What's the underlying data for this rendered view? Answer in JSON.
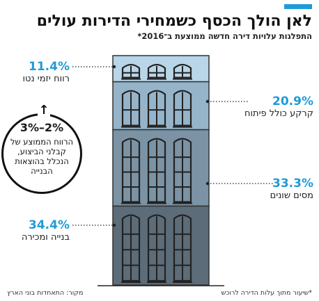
{
  "header": {
    "accent_color": "#1f9bd7",
    "title": "לאן הולך הכסף כשמחירי הדירות עולים",
    "subtitle": "התפלגות עלויות דירה חדשה ממוצעת ב־2016*"
  },
  "chart_data": {
    "type": "stacked-bar",
    "segments": [
      {
        "label": "רווח יזמי נטו",
        "value": 11.4,
        "display": "11.4%",
        "color": "#b9d5e8"
      },
      {
        "label": "קרקע כולל פיתוח",
        "value": 20.9,
        "display": "20.9%",
        "color": "#96b4c9"
      },
      {
        "label": "מסים שונים",
        "value": 33.3,
        "display": "33.3%",
        "color": "#7b93a4"
      },
      {
        "label": "בנייה ומכירה",
        "value": 34.4,
        "display": "34.4%",
        "color": "#5c6c78"
      }
    ],
    "callout": {
      "value": "3%–2%",
      "text": "הרווח הממוצע של קבלני הביצוע, הנכלל בהוצאות הבנייה"
    }
  },
  "footer": {
    "footnote": "*שיעור מתוך עלות הדירה לרוכש",
    "source": "מקור: התאחדות בוני הארץ"
  }
}
